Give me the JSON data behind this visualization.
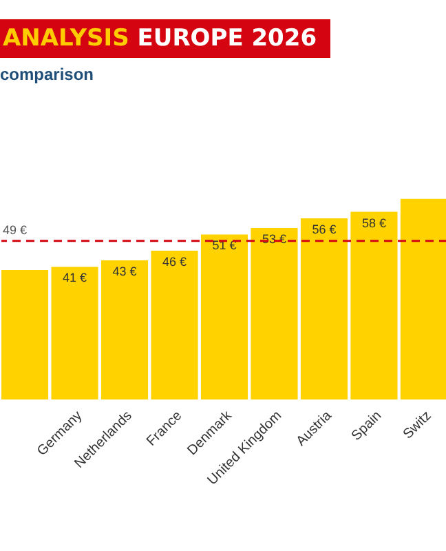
{
  "chart_data": {
    "type": "bar",
    "title": "ANALYSIS EUROPE 2026",
    "subtitle": "comparison",
    "categories": [
      null,
      "Germany",
      "Netherlands",
      "France",
      "Denmark",
      "United Kingdom",
      "Austria",
      "Spain",
      "Switz"
    ],
    "values": [
      40,
      41,
      43,
      46,
      51,
      53,
      56,
      58,
      62
    ],
    "value_labels": [
      null,
      "41 €",
      "43 €",
      "46 €",
      "51 €",
      "53 €",
      "56 €",
      "58 €",
      null
    ],
    "color": "#ffd200",
    "ylim": [
      0,
      66
    ],
    "ref_lines": [
      {
        "axis": "y",
        "value": 49,
        "label": "49 €",
        "color": "#d40511",
        "line_style": "dashed"
      }
    ]
  }
}
